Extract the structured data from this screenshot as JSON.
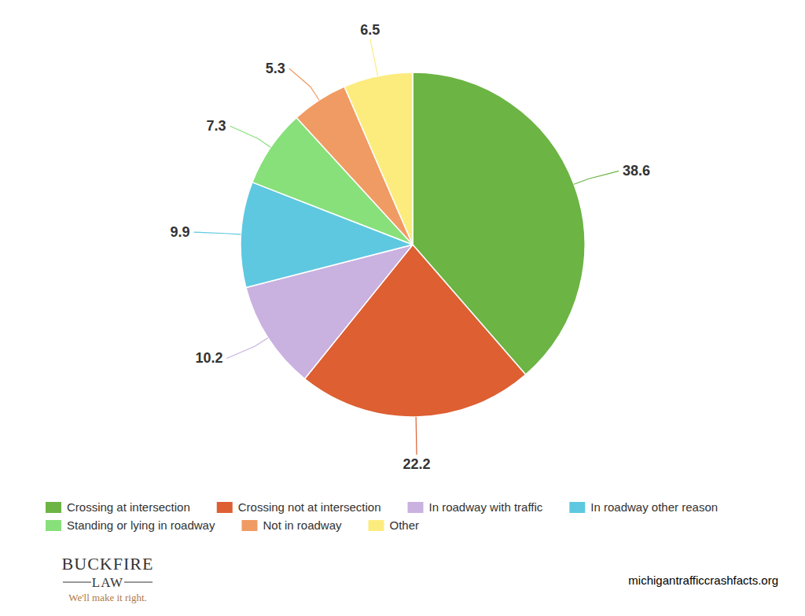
{
  "chart_data": {
    "type": "pie",
    "categories": [
      "Crossing at intersection",
      "Crossing not at intersection",
      "In roadway with traffic",
      "In roadway other reason",
      "Standing or lying in roadway",
      "Not in roadway",
      "Other"
    ],
    "values": [
      38.6,
      22.2,
      10.2,
      9.9,
      7.3,
      5.3,
      6.5
    ],
    "colors": [
      "#6cb444",
      "#dd5f32",
      "#c9b1e0",
      "#5ec8e0",
      "#88e07b",
      "#f09b63",
      "#fcec7e"
    ],
    "data_labels": true,
    "legend": "bottom",
    "logo": {
      "name": "BUCKFIRE",
      "sub": "LAW",
      "tagline": "We'll make it right."
    },
    "source": "michigantrafficcrashfacts.org"
  }
}
